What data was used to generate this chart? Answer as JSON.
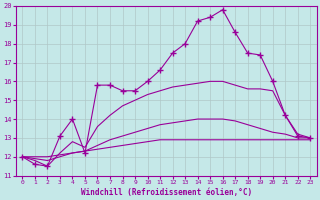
{
  "xlabel": "Windchill (Refroidissement éolien,°C)",
  "background_color": "#c5e8e8",
  "line_color": "#990099",
  "grid_color": "#b0c8c8",
  "xlim": [
    -0.5,
    23.5
  ],
  "ylim": [
    11,
    20
  ],
  "xticks": [
    0,
    1,
    2,
    3,
    4,
    5,
    6,
    7,
    8,
    9,
    10,
    11,
    12,
    13,
    14,
    15,
    16,
    17,
    18,
    19,
    20,
    21,
    22,
    23
  ],
  "yticks": [
    11,
    12,
    13,
    14,
    15,
    16,
    17,
    18,
    19,
    20
  ],
  "line_main_x": [
    0,
    1,
    2,
    3,
    4,
    5,
    6,
    7,
    8,
    9,
    10,
    11,
    12,
    13,
    14,
    15,
    16,
    17,
    18,
    19,
    20,
    21,
    22,
    23
  ],
  "line_main_y": [
    12.0,
    11.6,
    11.5,
    13.1,
    14.0,
    12.2,
    15.8,
    15.8,
    15.5,
    15.5,
    16.0,
    16.6,
    17.5,
    18.0,
    19.2,
    19.4,
    19.8,
    18.6,
    17.5,
    17.4,
    16.0,
    14.2,
    13.1,
    13.0
  ],
  "line2_x": [
    0,
    1,
    2,
    3,
    4,
    5,
    6,
    7,
    8,
    9,
    10,
    11,
    12,
    13,
    14,
    15,
    16,
    17,
    18,
    19,
    20,
    21,
    22,
    23
  ],
  "line2_y": [
    12.0,
    11.8,
    11.5,
    12.2,
    12.8,
    12.5,
    13.6,
    14.2,
    14.7,
    15.0,
    15.3,
    15.5,
    15.7,
    15.8,
    15.9,
    16.0,
    16.0,
    15.8,
    15.6,
    15.6,
    15.5,
    14.2,
    13.2,
    13.0
  ],
  "line3_x": [
    0,
    1,
    2,
    3,
    4,
    5,
    6,
    7,
    8,
    9,
    10,
    11,
    12,
    13,
    14,
    15,
    16,
    17,
    18,
    19,
    20,
    21,
    22,
    23
  ],
  "line3_y": [
    12.0,
    11.9,
    11.8,
    12.0,
    12.2,
    12.3,
    12.6,
    12.9,
    13.1,
    13.3,
    13.5,
    13.7,
    13.8,
    13.9,
    14.0,
    14.0,
    14.0,
    13.9,
    13.7,
    13.5,
    13.3,
    13.2,
    13.0,
    13.0
  ],
  "line4_x": [
    0,
    1,
    2,
    3,
    4,
    5,
    6,
    7,
    8,
    9,
    10,
    11,
    12,
    13,
    14,
    15,
    16,
    17,
    18,
    19,
    20,
    21,
    22,
    23
  ],
  "line4_y": [
    12.0,
    12.0,
    12.0,
    12.1,
    12.2,
    12.3,
    12.4,
    12.5,
    12.6,
    12.7,
    12.8,
    12.9,
    12.9,
    12.9,
    12.9,
    12.9,
    12.9,
    12.9,
    12.9,
    12.9,
    12.9,
    12.9,
    12.9,
    12.9
  ]
}
